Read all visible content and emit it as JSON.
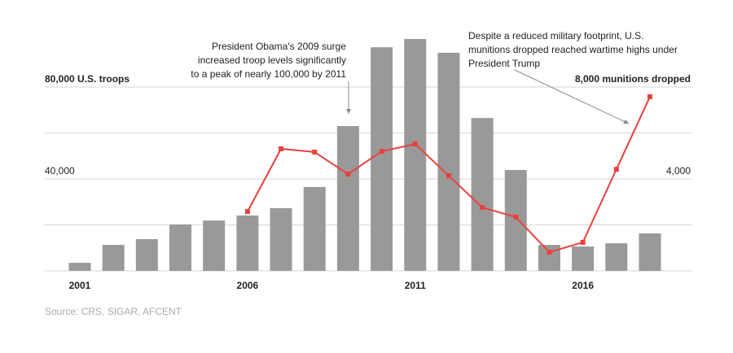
{
  "chart_data": {
    "type": "bar-line",
    "x": [
      2001,
      2002,
      2003,
      2004,
      2005,
      2006,
      2007,
      2008,
      2009,
      2010,
      2011,
      2012,
      2013,
      2014,
      2015,
      2016,
      2017,
      2018
    ],
    "xlim": [
      2000.5,
      2018.5
    ],
    "xticks": [
      2001,
      2006,
      2011,
      2016
    ],
    "ylim": [
      0,
      110000
    ],
    "yticks": [
      {
        "value": 0,
        "label": null
      },
      {
        "value": 20000,
        "label": null
      },
      {
        "value": 40000,
        "label": "40,000"
      },
      {
        "value": 60000,
        "label": null
      },
      {
        "value": 80000,
        "label": "80,000 U.S. troops"
      }
    ],
    "y2lim": [
      0,
      11000
    ],
    "y2ticks": [
      {
        "value": 4000,
        "label": "4,000"
      },
      {
        "value": 8000,
        "label": "8,000 munitions dropped"
      }
    ],
    "grid": true,
    "series": [
      {
        "name": "U.S. troops",
        "type": "bar",
        "color": "#999999",
        "values": [
          3500,
          11300,
          13800,
          20200,
          21900,
          24100,
          27300,
          36500,
          63000,
          97300,
          100900,
          94900,
          66500,
          43900,
          11300,
          10600,
          12000,
          16300
        ]
      },
      {
        "name": "Munitions dropped",
        "type": "line",
        "axis": "y2",
        "color": "#e8413c",
        "values": [
          null,
          null,
          null,
          null,
          null,
          2580,
          5310,
          5170,
          4210,
          5200,
          5520,
          4140,
          2760,
          2340,
          810,
          1240,
          4420,
          7580
        ]
      }
    ],
    "annotations": [
      {
        "lines": [
          "President Obama's 2009 surge",
          "increased troop levels significantly",
          "to a peak of nearly 100,000 by 2011"
        ]
      },
      {
        "lines": [
          "Despite a reduced military footprint, U.S.",
          "munitions dropped reached wartime highs under",
          "President Trump"
        ]
      }
    ],
    "source": "Source: CRS, SIGAR, AFCENT"
  }
}
